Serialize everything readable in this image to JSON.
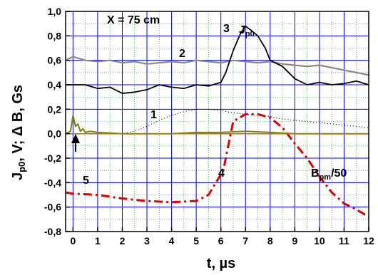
{
  "chart_data": {
    "type": "line",
    "xlabel": "t, µs",
    "ylabel": "J",
    "ylabel_sub": "p0",
    "ylabel_rest": ", V; Δ B, Gs",
    "xlim": [
      -0.3,
      12
    ],
    "ylim": [
      -0.8,
      1.0
    ],
    "x_ticks": [
      0,
      1,
      2,
      3,
      4,
      5,
      6,
      7,
      8,
      9,
      10,
      11,
      12
    ],
    "x_tick_labels": [
      "0",
      "1",
      "2",
      "3",
      "4",
      "5",
      "6",
      "7",
      "8",
      "9",
      "10",
      "11",
      "12"
    ],
    "y_ticks": [
      -0.8,
      -0.6,
      -0.4,
      -0.2,
      0.0,
      0.2,
      0.4,
      0.6,
      0.8,
      1.0
    ],
    "y_tick_labels": [
      "-0,8",
      "-0,6",
      "-0,4",
      "-0,2",
      "0,0",
      "0,2",
      "0,4",
      "0,6",
      "0,8",
      "1,0"
    ],
    "grid": true,
    "colors": {
      "grid": "#0000ff",
      "series_1": "#000000",
      "series_2": "#888888",
      "series_3": "#000000",
      "series_4": "#dd0000",
      "series_5": "#808000",
      "series_6": "#cc6600"
    },
    "annotations": {
      "position_label": "X = 75 cm",
      "label_1": "1",
      "label_2": "2",
      "label_3": "3",
      "label_4": "4",
      "label_5": "5",
      "jp0_main": "J",
      "jp0_sub": "p0",
      "bpm_main": "B",
      "bpm_sub": "pm",
      "bpm_rest": "/50"
    },
    "series": [
      {
        "id": "1",
        "style": "dotted",
        "x": [
          0,
          0.5,
          1,
          1.5,
          2,
          2.5,
          3,
          3.5,
          4,
          4.5,
          5,
          5.5,
          6,
          6.5,
          7,
          7.5,
          8,
          8.5,
          9,
          9.5,
          10,
          10.5,
          11,
          11.5,
          12
        ],
        "y": [
          0.0,
          0.0,
          0.0,
          0.0,
          0.0,
          0.02,
          0.06,
          0.11,
          0.15,
          0.18,
          0.2,
          0.2,
          0.19,
          0.17,
          0.16,
          0.15,
          0.14,
          0.12,
          0.11,
          0.1,
          0.09,
          0.08,
          0.07,
          0.06,
          0.05
        ]
      },
      {
        "id": "2",
        "style": "solid",
        "x": [
          -0.3,
          0,
          0.5,
          1,
          1.5,
          2,
          2.5,
          3,
          3.5,
          4,
          4.5,
          5,
          5.5,
          6,
          6.5,
          7,
          7.5,
          8,
          8.5,
          9,
          9.5,
          10,
          10.5,
          11,
          11.5,
          12
        ],
        "y": [
          0.6,
          0.63,
          0.6,
          0.59,
          0.6,
          0.58,
          0.59,
          0.57,
          0.58,
          0.59,
          0.58,
          0.6,
          0.59,
          0.58,
          0.6,
          0.59,
          0.58,
          0.59,
          0.57,
          0.56,
          0.55,
          0.56,
          0.54,
          0.52,
          0.5,
          0.48
        ]
      },
      {
        "id": "3",
        "style": "solid",
        "x": [
          -0.3,
          0,
          0.5,
          1,
          1.5,
          2,
          2.5,
          3,
          3.5,
          4,
          4.5,
          5,
          5.5,
          6,
          6.2,
          6.5,
          6.8,
          7,
          7.2,
          7.5,
          7.8,
          8,
          8.5,
          9,
          9.5,
          10,
          10.5,
          11,
          11.5,
          12
        ],
        "y": [
          0.4,
          0.4,
          0.4,
          0.37,
          0.38,
          0.33,
          0.34,
          0.36,
          0.4,
          0.38,
          0.37,
          0.4,
          0.39,
          0.42,
          0.5,
          0.68,
          0.82,
          0.88,
          0.85,
          0.8,
          0.7,
          0.6,
          0.55,
          0.45,
          0.4,
          0.42,
          0.4,
          0.41,
          0.43,
          0.4
        ]
      },
      {
        "id": "4",
        "style": "dashdot",
        "x": [
          -0.3,
          0,
          1,
          2,
          3,
          4,
          5,
          5.5,
          5.8,
          6.1,
          6.3,
          6.5,
          7,
          7.5,
          8,
          8.5,
          9,
          9.5,
          10,
          10.5,
          11,
          11.5,
          12
        ],
        "y": [
          -0.48,
          -0.49,
          -0.5,
          -0.53,
          -0.55,
          -0.56,
          -0.55,
          -0.5,
          -0.4,
          -0.3,
          -0.1,
          0.1,
          0.16,
          0.16,
          0.13,
          0.05,
          -0.08,
          -0.2,
          -0.35,
          -0.48,
          -0.57,
          -0.62,
          -0.68
        ]
      },
      {
        "id": "5",
        "style": "solid",
        "x": [
          -0.3,
          -0.1,
          0,
          0.1,
          0.2,
          0.3,
          0.4,
          0.5,
          0.7,
          1,
          2,
          3,
          4,
          5,
          6,
          7,
          8,
          9,
          10,
          11,
          12
        ],
        "y": [
          0.0,
          0.02,
          0.15,
          0.06,
          0.08,
          0.02,
          0.04,
          0.01,
          0.02,
          0.01,
          0.0,
          0.0,
          0.0,
          0.01,
          0.01,
          0.02,
          0.01,
          0.0,
          0.0,
          0.0,
          0.0
        ]
      },
      {
        "id": "6",
        "style": "solid",
        "x": [
          -0.3,
          0,
          1,
          2,
          3,
          4,
          5,
          6,
          7,
          8,
          9,
          10,
          11,
          12
        ],
        "y": [
          0.0,
          0.0,
          0.0,
          0.0,
          0.0,
          0.0,
          0.0,
          0.0,
          0.0,
          0.0,
          0.0,
          0.0,
          0.0,
          0.0
        ]
      }
    ]
  }
}
